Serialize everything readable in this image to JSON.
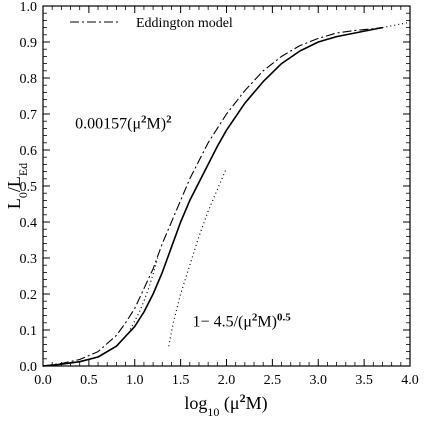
{
  "chart_data": {
    "type": "line",
    "xlabel": "log",
    "xlabel_sub": "10",
    "xlabel_rest": " (μ",
    "xlabel_sup": "2",
    "xlabel_end": "M)",
    "ylabel": "L",
    "ylabel_sub1": "0",
    "ylabel_mid": "/L",
    "ylabel_sub2": "Ed",
    "xlim": [
      0.0,
      4.0
    ],
    "ylim": [
      0.0,
      1.0
    ],
    "xticks": [
      "0.0",
      "0.5",
      "1.0",
      "1.5",
      "2.0",
      "2.5",
      "3.0",
      "3.5",
      "4.0"
    ],
    "yticks": [
      "0.0",
      "0.1",
      "0.2",
      "0.3",
      "0.4",
      "0.5",
      "0.6",
      "0.7",
      "0.8",
      "0.9",
      "1.0"
    ],
    "legend": {
      "position": "top-left",
      "label": "Eddington model"
    },
    "annotations": [
      {
        "id": "low",
        "text": "0.00157(μ",
        "sup": "2",
        "rest": "M)",
        "sup2": "2",
        "x": 0.35,
        "y": 0.66
      },
      {
        "id": "high",
        "text": "1− 4.5/(μ",
        "sup": "2",
        "rest": "M)",
        "sup2": "0.5",
        "x": 1.63,
        "y": 0.11
      }
    ],
    "series": [
      {
        "style": "solid",
        "x": [
          0.0,
          0.2,
          0.4,
          0.6,
          0.8,
          1.0,
          1.1,
          1.2,
          1.3,
          1.4,
          1.5,
          1.6,
          1.7,
          1.8,
          1.9,
          2.0,
          2.2,
          2.4,
          2.6,
          2.8,
          3.0,
          3.2,
          3.4,
          3.6,
          3.7
        ],
        "y": [
          0.0,
          0.005,
          0.012,
          0.025,
          0.055,
          0.11,
          0.15,
          0.2,
          0.26,
          0.33,
          0.4,
          0.46,
          0.51,
          0.56,
          0.61,
          0.655,
          0.73,
          0.79,
          0.84,
          0.875,
          0.9,
          0.915,
          0.925,
          0.935,
          0.94
        ]
      },
      {
        "style": "dashdot",
        "x": [
          0.0,
          0.2,
          0.4,
          0.6,
          0.8,
          0.9,
          1.0,
          1.1,
          1.2,
          1.3,
          1.4,
          1.5,
          1.6,
          1.7,
          1.8,
          1.9,
          2.0,
          2.2,
          2.4,
          2.6,
          2.8,
          3.0,
          3.2,
          3.4,
          3.6,
          3.7
        ],
        "y": [
          0.0,
          0.007,
          0.018,
          0.04,
          0.085,
          0.12,
          0.16,
          0.215,
          0.27,
          0.34,
          0.4,
          0.46,
          0.52,
          0.57,
          0.62,
          0.66,
          0.7,
          0.765,
          0.82,
          0.86,
          0.89,
          0.91,
          0.925,
          0.932,
          0.937,
          0.94
        ]
      },
      {
        "style": "dotted",
        "x": [
          0.95,
          1.0,
          1.05,
          1.1,
          1.15,
          1.2,
          1.25
        ],
        "y": [
          0.102,
          0.125,
          0.15,
          0.18,
          0.215,
          0.255,
          0.3
        ]
      },
      {
        "style": "dotted",
        "x": [
          1.37,
          1.42,
          1.5,
          1.6,
          1.7,
          1.8,
          1.9,
          2.0
        ],
        "y": [
          0.055,
          0.12,
          0.2,
          0.28,
          0.36,
          0.43,
          0.49,
          0.55
        ]
      },
      {
        "style": "dotted",
        "x": [
          3.7,
          3.8,
          3.9,
          4.0
        ],
        "y": [
          0.94,
          0.945,
          0.95,
          0.955
        ]
      }
    ]
  }
}
